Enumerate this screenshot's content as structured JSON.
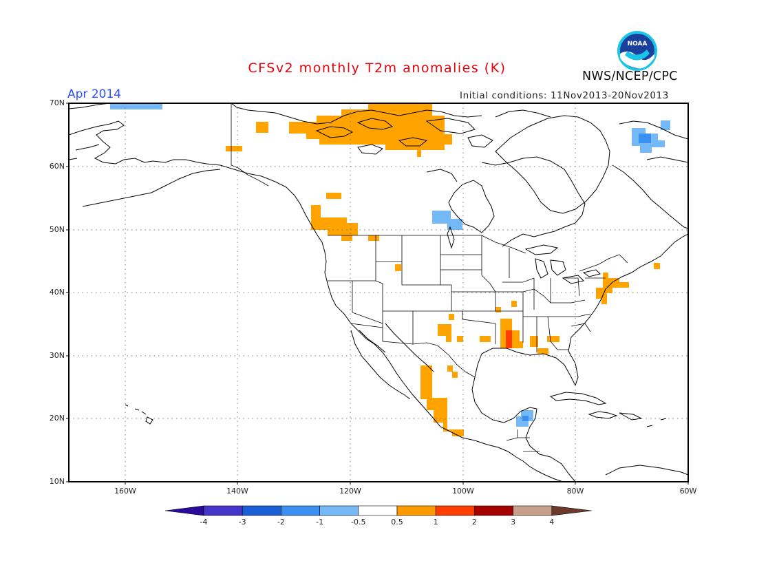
{
  "header": {
    "title": "CFSv2 monthly T2m anomalies (K)",
    "month": "Apr 2014",
    "initial_conditions": "Initial conditions: 11Nov2013-20Nov2013",
    "agency": "NWS/NCEP/CPC",
    "logo_text": "NOAA"
  },
  "map": {
    "lat_labels": [
      "70N",
      "60N",
      "50N",
      "40N",
      "30N",
      "20N",
      "10N"
    ],
    "lon_labels": [
      "160W",
      "140W",
      "120W",
      "100W",
      "80W",
      "60W"
    ],
    "lon_range": [
      -170,
      -60
    ],
    "lat_range": [
      10,
      70
    ],
    "grid": "dotted",
    "anomaly_regions": [
      {
        "name": "Bering Strait",
        "value": -0.8
      },
      {
        "name": "Northern Canada / Beaufort Sea",
        "value": 0.7
      },
      {
        "name": "Yukon",
        "value": 0.7
      },
      {
        "name": "Southern Alaska",
        "value": 0.7
      },
      {
        "name": "British Columbia",
        "value": 0.7
      },
      {
        "name": "Baffin Island",
        "value": -0.8
      },
      {
        "name": "Hudson Bay south",
        "value": -0.7
      },
      {
        "name": "Idaho / Montana",
        "value": 0.7
      },
      {
        "name": "Texas / New Mexico",
        "value": 0.7
      },
      {
        "name": "Lower Mississippi Valley",
        "value": 1.2
      },
      {
        "name": "Gulf Coast",
        "value": 0.7
      },
      {
        "name": "Mid-Atlantic / Northeast coast",
        "value": 0.7
      },
      {
        "name": "Western Mexico",
        "value": 0.7
      },
      {
        "name": "Yucatan",
        "value": -0.7
      }
    ]
  },
  "colorbar": {
    "labels": [
      "-4",
      "-3",
      "-2",
      "-1",
      "-0.5",
      "0.5",
      "1",
      "2",
      "3",
      "4"
    ],
    "colors": [
      "#2a0a9a",
      "#4535c8",
      "#1a5fd6",
      "#3a8ff0",
      "#74b8f5",
      "#ffffff",
      "#ff9900",
      "#ff3d00",
      "#a50000",
      "#c8a08a",
      "#6b3a2a"
    ]
  },
  "colors": {
    "warm": "#ffa300",
    "warm_strong": "#ff3d00",
    "cool": "#74b8f5",
    "cool_strong": "#3a8ff0"
  }
}
